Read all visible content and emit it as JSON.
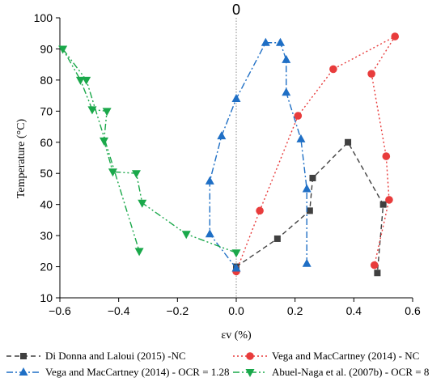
{
  "chart_data": {
    "type": "scatter",
    "xlabel": "εv (%)",
    "ylabel": "Temperature (°C)",
    "xlim": [
      -0.6,
      0.6
    ],
    "ylim": [
      10,
      100
    ],
    "xticks": [
      "−0.6",
      "−0.4",
      "−0.2",
      "0.0",
      "0.2",
      "0.4",
      "0.6"
    ],
    "yticks": [
      "10",
      "20",
      "30",
      "40",
      "50",
      "60",
      "70",
      "80",
      "90",
      "100"
    ],
    "xtick_values": [
      -0.6,
      -0.4,
      -0.2,
      0.0,
      0.2,
      0.4,
      0.6
    ],
    "ytick_values": [
      10,
      20,
      30,
      40,
      50,
      60,
      70,
      80,
      90,
      100
    ],
    "zero_line_label": "0",
    "legend_placement": "bottom",
    "grid": false,
    "series": [
      {
        "name": "Di Donna and Laloui (2015) -NC",
        "color": "#404040",
        "marker": "square",
        "line": "dash",
        "points": [
          [
            0.0,
            20
          ],
          [
            0.14,
            29
          ],
          [
            0.25,
            38
          ],
          [
            0.26,
            48.5
          ],
          [
            0.38,
            60
          ],
          [
            0.5,
            40
          ],
          [
            0.48,
            18
          ]
        ]
      },
      {
        "name": "Vega and MacCartney (2014) - NC",
        "color": "#e83c3c",
        "marker": "circle",
        "line": "dot",
        "points": [
          [
            0.0,
            18.5
          ],
          [
            0.08,
            38
          ],
          [
            0.21,
            68.5
          ],
          [
            0.33,
            83.5
          ],
          [
            0.54,
            94
          ],
          [
            0.46,
            82
          ],
          [
            0.51,
            55.5
          ],
          [
            0.52,
            41.5
          ],
          [
            0.47,
            20.5
          ]
        ]
      },
      {
        "name": "Vega and MacCartney (2014) - OCR = 1.28",
        "color": "#1f6fc5",
        "marker": "triangle-up",
        "line": "dashdot",
        "points": [
          [
            0.0,
            19.5
          ],
          [
            -0.09,
            30.5
          ],
          [
            -0.09,
            47.5
          ],
          [
            -0.05,
            62
          ],
          [
            0.0,
            74
          ],
          [
            0.1,
            92
          ],
          [
            0.15,
            92
          ],
          [
            0.17,
            86.5
          ],
          [
            0.17,
            76
          ],
          [
            0.22,
            61
          ],
          [
            0.24,
            45
          ],
          [
            0.24,
            21
          ]
        ]
      },
      {
        "name": "Abuel-Naga et al. (2007b) - OCR = 8",
        "color": "#1aa84a",
        "marker": "triangle-down",
        "line": "dashdotdot",
        "points": [
          [
            0.0,
            24.5
          ],
          [
            -0.17,
            30.5
          ],
          [
            -0.32,
            40.5
          ],
          [
            -0.34,
            50
          ],
          [
            -0.42,
            50.5
          ],
          [
            -0.45,
            60.5
          ],
          [
            -0.44,
            70
          ],
          [
            -0.49,
            70.5
          ],
          [
            -0.53,
            80
          ],
          [
            -0.59,
            90
          ],
          [
            -0.51,
            80
          ],
          [
            -0.33,
            25
          ]
        ]
      }
    ]
  }
}
